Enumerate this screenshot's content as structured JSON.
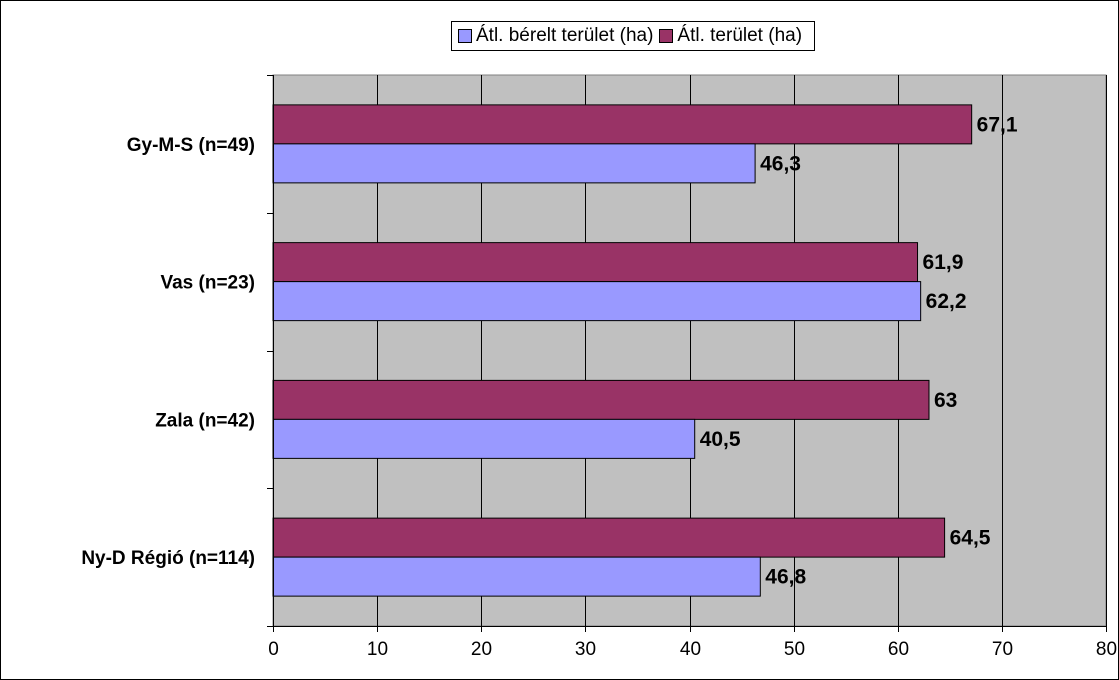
{
  "chart_data": {
    "type": "bar",
    "orientation": "horizontal",
    "categories": [
      "Gy-M-S (n=49)",
      "Vas (n=23)",
      "Zala (n=42)",
      "Ny-D Régió (n=114)"
    ],
    "series": [
      {
        "name": "Átl. terület (ha)",
        "values": [
          67.1,
          61.9,
          63,
          64.5
        ],
        "labels": [
          "67,1",
          "61,9",
          "63",
          "64,5"
        ],
        "color": "#993366"
      },
      {
        "name": "Átl. bérelt terület (ha)",
        "values": [
          46.3,
          62.2,
          40.5,
          46.8
        ],
        "labels": [
          "46,3",
          "62,2",
          "40,5",
          "46,8"
        ],
        "color": "#9999ff"
      }
    ],
    "xlim": [
      0,
      80
    ],
    "xticks": [
      0,
      10,
      20,
      30,
      40,
      50,
      60,
      70,
      80
    ],
    "xtick_labels": [
      "0",
      "10",
      "20",
      "30",
      "40",
      "50",
      "60",
      "70",
      "80"
    ],
    "grid": true,
    "plot_background": "#c0c0c0",
    "legend": {
      "placement": "top-center",
      "items": [
        {
          "label": "Átl. bérelt terület (ha)",
          "color": "#9999ff"
        },
        {
          "label": "Átl. terület (ha)",
          "color": "#993366"
        }
      ]
    },
    "title": "",
    "xlabel": "",
    "ylabel": ""
  }
}
